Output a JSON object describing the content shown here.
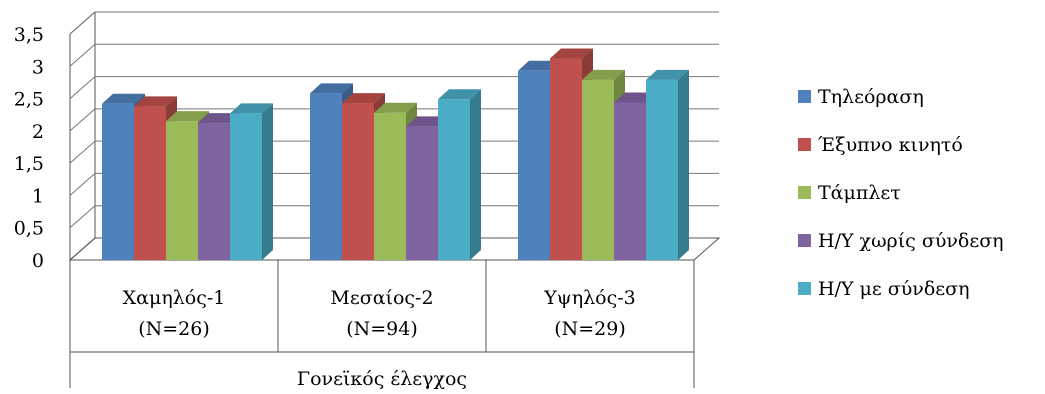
{
  "chart_data": {
    "type": "bar",
    "style": "3d-clustered-column",
    "categories": [
      [
        "Χαμηλός-1",
        "(N=26)"
      ],
      [
        "Μεσαίος-2",
        "(N=94)"
      ],
      [
        "Υψηλός-3",
        "(N=29)"
      ]
    ],
    "group_label": "Γονεϊκός έλεγχος",
    "series": [
      {
        "name": "Τηλεόραση",
        "color": "#4f81bd",
        "values": [
          2.42,
          2.58,
          2.93
        ]
      },
      {
        "name": "Έξυπνο κινητό",
        "color": "#c0504d",
        "values": [
          2.38,
          2.43,
          3.12
        ]
      },
      {
        "name": "Τάμπλετ",
        "color": "#9bbb59",
        "values": [
          2.15,
          2.28,
          2.79
        ]
      },
      {
        "name": "Η/Υ χωρίς σύνδεση",
        "color": "#8064a2",
        "values": [
          2.12,
          2.07,
          2.44
        ]
      },
      {
        "name": "Η/Υ με σύνδεση",
        "color": "#4bacc6",
        "values": [
          2.27,
          2.49,
          2.79
        ]
      }
    ],
    "yticks": [
      "0",
      "0,5",
      "1",
      "1,5",
      "2",
      "2,5",
      "3",
      "3,5"
    ],
    "ylim": [
      0,
      3.5
    ],
    "grid": true,
    "legend_position": "right"
  }
}
